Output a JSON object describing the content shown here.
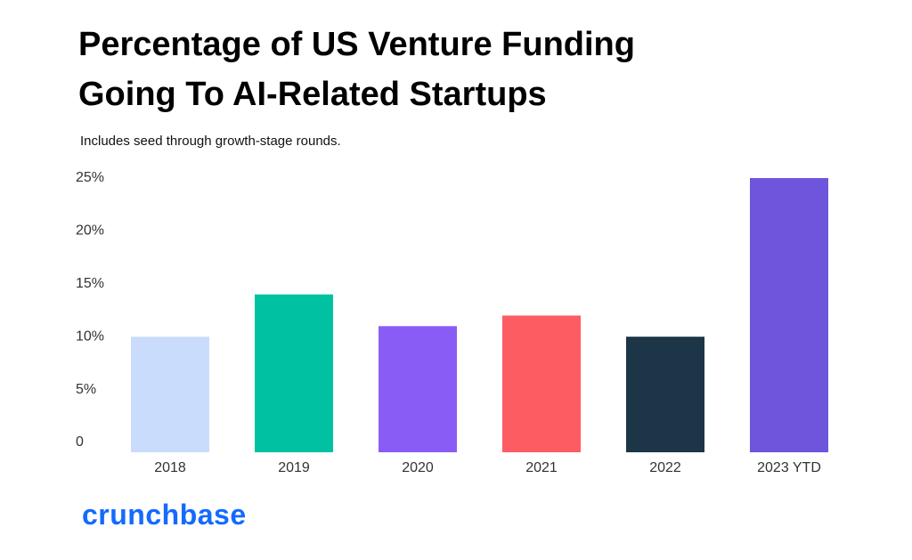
{
  "chart_data": {
    "type": "bar",
    "title": "Percentage of US Venture Funding Going To AI-Related Startups",
    "subtitle": "Includes seed through growth-stage rounds.",
    "categories": [
      "2018",
      "2019",
      "2020",
      "2021",
      "2022",
      "2023 YTD"
    ],
    "values": [
      10,
      14,
      11,
      12,
      10,
      25
    ],
    "colors": [
      "#c9dcfc",
      "#00c2a2",
      "#8a5cf6",
      "#fd5c63",
      "#1c3547",
      "#6e55dc"
    ],
    "ylim": [
      0,
      25
    ],
    "yticks": [
      0,
      {
        "value": 5,
        "label": "5%"
      },
      {
        "value": 10,
        "label": "10%"
      },
      {
        "value": 15,
        "label": "15%"
      },
      {
        "value": 20,
        "label": "20%"
      },
      {
        "value": 25,
        "label": "25%"
      }
    ],
    "grid": false
  },
  "brand": "crunchbase"
}
